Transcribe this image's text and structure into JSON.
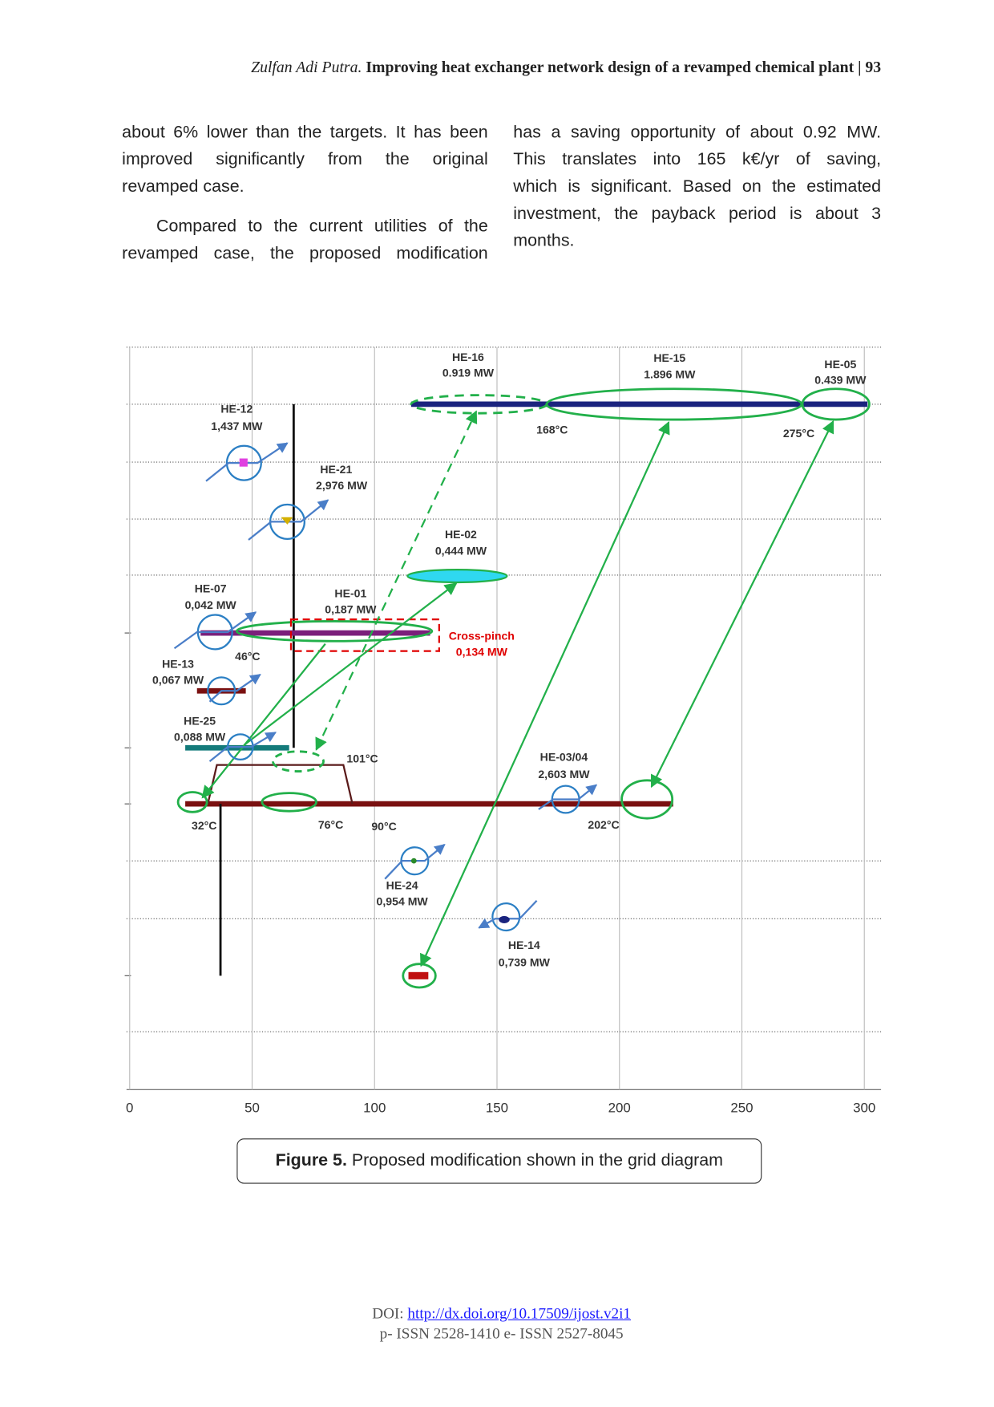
{
  "header": {
    "author": "Zulfan Adi Putra.",
    "title": "Improving heat exchanger network design of a revamped chemical plant",
    "page": "93"
  },
  "left_column": {
    "paragraphs": [
      [
        "about 6% lower than the targets. It has been",
        "improved significantly from the original",
        "revamped case."
      ],
      [
        "Compared to the current utilities of the",
        "revamped case, the proposed modification"
      ]
    ]
  },
  "right_column": {
    "paragraphs": [
      [
        "has a saving opportunity of about 0.92 MW.",
        "This translates into 165 k€/yr of saving,",
        "which is significant. Based on the estimated",
        "investment, the payback period is about 3",
        "months."
      ]
    ]
  },
  "figure": {
    "xlim": [
      0,
      300
    ],
    "xticks": [
      0,
      50,
      100,
      150,
      200,
      250,
      300
    ],
    "exchangers": [
      {
        "name": "HE-16",
        "duty": "0.919 MW"
      },
      {
        "name": "HE-15",
        "duty": "1.896 MW"
      },
      {
        "name": "HE-05",
        "duty": "0.439 MW"
      },
      {
        "name": "HE-12",
        "duty": "1,437 MW"
      },
      {
        "name": "HE-21",
        "duty": "2,976 MW"
      },
      {
        "name": "HE-02",
        "duty": "0,444 MW"
      },
      {
        "name": "HE-07",
        "duty": "0,042 MW"
      },
      {
        "name": "HE-01",
        "duty": "0,187 MW"
      },
      {
        "name": "HE-13",
        "duty": "0,067 MW"
      },
      {
        "name": "HE-25",
        "duty": "0,088 MW"
      },
      {
        "name": "HE-03/04",
        "duty": "2,603 MW"
      },
      {
        "name": "HE-24",
        "duty": "0,954 MW"
      },
      {
        "name": "HE-14",
        "duty": "0,739 MW"
      }
    ],
    "cross_pinch": {
      "label": "Cross-pinch",
      "duty": "0,134 MW"
    },
    "temperatures": [
      "168°C",
      "275°C",
      "46°C",
      "101°C",
      "32°C",
      "76°C",
      "90°C",
      "202°C"
    ],
    "caption": {
      "label": "Figure 5.",
      "text": "Proposed modification shown in the grid diagram"
    }
  },
  "footer": {
    "doi_prefix": "DOI:",
    "doi": "http://dx.doi.org/10.17509/ijost.v2i1",
    "issn": "p- ISSN 2528-1410 e- ISSN 2527-8045"
  }
}
